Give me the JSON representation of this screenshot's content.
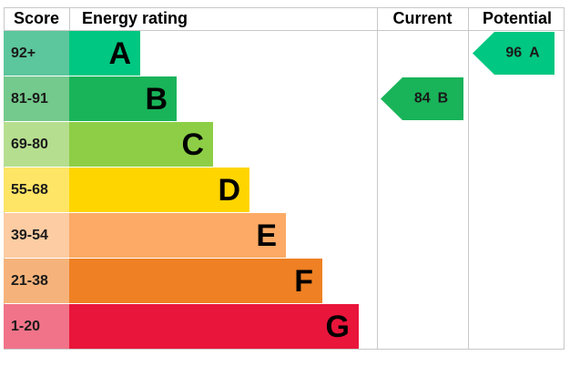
{
  "chart_data": {
    "type": "epc",
    "headers": {
      "score": "Score",
      "rating": "Energy rating",
      "current": "Current",
      "potential": "Potential"
    },
    "bands": [
      {
        "score": "92+",
        "letter": "A",
        "color": "#00c781",
        "score_color": "#5cc69c"
      },
      {
        "score": "81-91",
        "letter": "B",
        "color": "#19b459",
        "score_color": "#74c98c"
      },
      {
        "score": "69-80",
        "letter": "C",
        "color": "#8dce46",
        "score_color": "#b6de8f"
      },
      {
        "score": "55-68",
        "letter": "D",
        "color": "#ffd500",
        "score_color": "#ffe566"
      },
      {
        "score": "39-54",
        "letter": "E",
        "color": "#fcaa65",
        "score_color": "#fdcca3"
      },
      {
        "score": "21-38",
        "letter": "F",
        "color": "#ef8023",
        "score_color": "#f5b37b"
      },
      {
        "score": "1-20",
        "letter": "G",
        "color": "#e9153b",
        "score_color": "#f07389"
      }
    ],
    "current": {
      "value": 84,
      "letter": "B"
    },
    "potential": {
      "value": 96,
      "letter": "A"
    }
  }
}
